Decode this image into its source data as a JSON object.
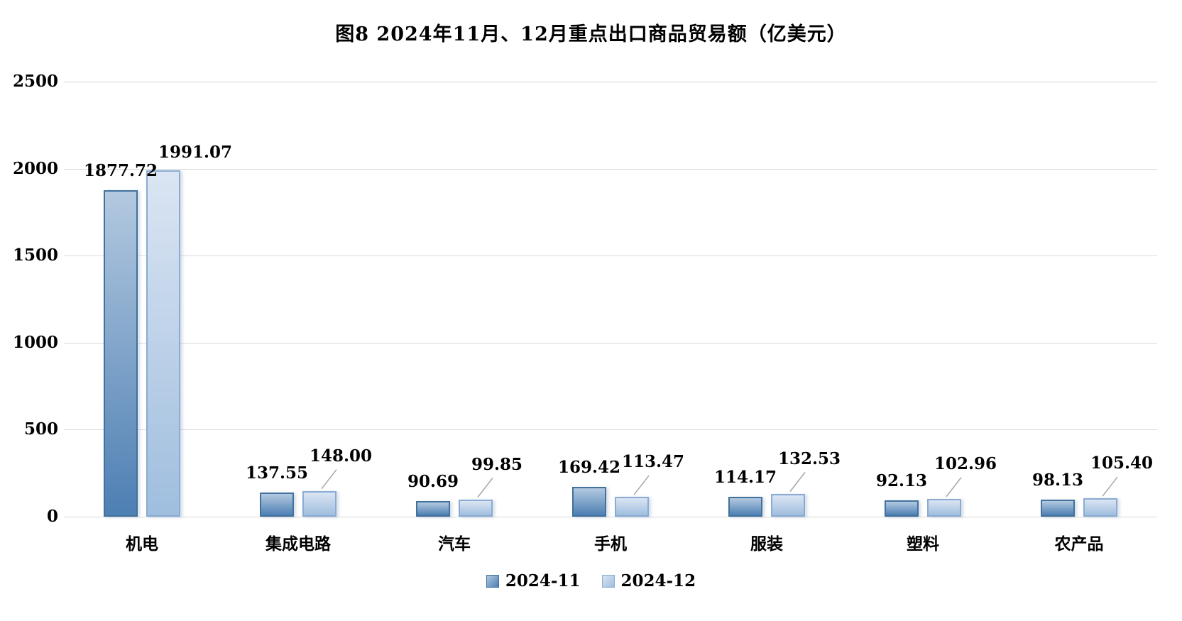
{
  "title": "图8 2024年11月、12月重点出口商品贸易额（亿美元）",
  "colors": {
    "series1_top": "#b3c9e0",
    "series1_bottom": "#4d7fb3",
    "series1_border": "#41719c",
    "series2_top": "#dbe5f3",
    "series2_bottom": "#9fbede",
    "series2_border": "#8aabd3",
    "gridline": "#d9d9d9",
    "leader_line": "#a6a6a6",
    "text": "#000000"
  },
  "chart_data": {
    "type": "bar",
    "title": "图8 2024年11月、12月重点出口商品贸易额（亿美元）",
    "categories": [
      "机电",
      "集成电路",
      "汽车",
      "手机",
      "服装",
      "塑料",
      "农产品"
    ],
    "series": [
      {
        "name": "2024-11",
        "values": [
          1877.72,
          137.55,
          90.69,
          169.42,
          114.17,
          92.13,
          98.13
        ]
      },
      {
        "name": "2024-12",
        "values": [
          1991.07,
          148.0,
          99.85,
          113.47,
          132.53,
          102.96,
          105.4
        ]
      }
    ],
    "data_labels": [
      "1877.72",
      "1991.07",
      "137.55",
      "148.00",
      "90.69",
      "99.85",
      "169.42",
      "113.47",
      "114.17",
      "132.53",
      "92.13",
      "102.96",
      "98.13",
      "105.40"
    ],
    "xlabel": "",
    "ylabel": "",
    "ylim": [
      0,
      2500
    ],
    "yticks": [
      0,
      500,
      1000,
      1500,
      2000,
      2500
    ],
    "grid": true,
    "legend_position": "bottom"
  }
}
